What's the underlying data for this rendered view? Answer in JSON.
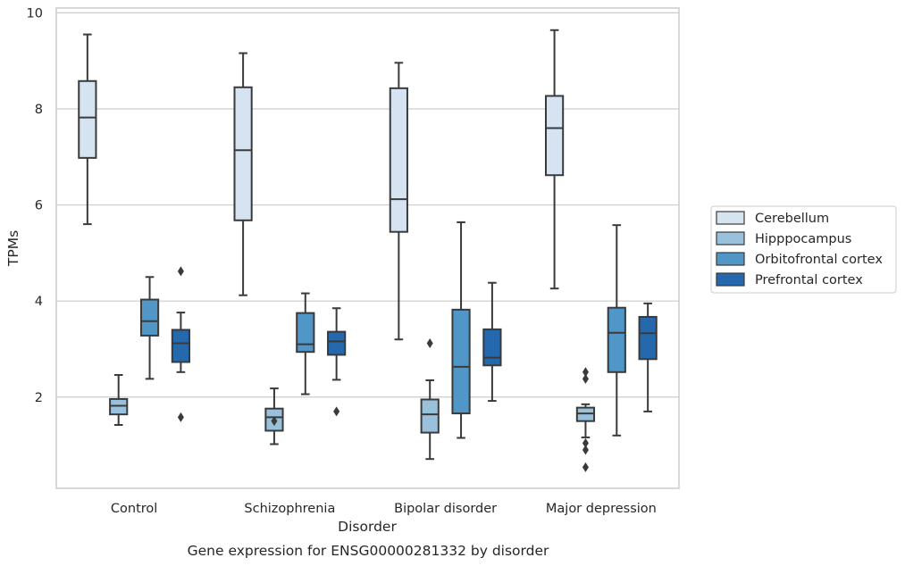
{
  "chart_data": {
    "type": "box",
    "caption": "Gene expression for ENSG00000281332 by disorder",
    "xlabel": "Disorder",
    "ylabel": "TPMs",
    "ylim": [
      0.1,
      10.1
    ],
    "yticks": [
      2,
      4,
      6,
      8,
      10
    ],
    "grid": "horizontal",
    "legend_position": "right",
    "categories": [
      "Control",
      "Schizophrenia",
      "Bipolar disorder",
      "Major depression"
    ],
    "series": [
      {
        "name": "Cerebellum",
        "color": "#d6e4f2",
        "boxes": [
          {
            "whisker_low": 5.6,
            "q1": 6.98,
            "median": 7.82,
            "q3": 8.58,
            "whisker_high": 9.55,
            "outliers": []
          },
          {
            "whisker_low": 4.12,
            "q1": 5.68,
            "median": 7.14,
            "q3": 8.45,
            "whisker_high": 9.16,
            "outliers": []
          },
          {
            "whisker_low": 3.2,
            "q1": 5.44,
            "median": 6.12,
            "q3": 8.43,
            "whisker_high": 8.96,
            "outliers": []
          },
          {
            "whisker_low": 4.26,
            "q1": 6.62,
            "median": 7.6,
            "q3": 8.27,
            "whisker_high": 9.64,
            "outliers": []
          }
        ]
      },
      {
        "name": "Hipppocampus",
        "color": "#99c1dc",
        "boxes": [
          {
            "whisker_low": 1.42,
            "q1": 1.64,
            "median": 1.82,
            "q3": 1.96,
            "whisker_high": 2.46,
            "outliers": []
          },
          {
            "whisker_low": 1.02,
            "q1": 1.3,
            "median": 1.58,
            "q3": 1.76,
            "whisker_high": 2.18,
            "outliers": [
              1.5
            ]
          },
          {
            "whisker_low": 0.71,
            "q1": 1.26,
            "median": 1.64,
            "q3": 1.95,
            "whisker_high": 2.35,
            "outliers": [
              3.12
            ]
          },
          {
            "whisker_low": 1.16,
            "q1": 1.5,
            "median": 1.66,
            "q3": 1.78,
            "whisker_high": 1.85,
            "outliers": [
              0.54,
              0.9,
              1.04,
              2.38,
              2.52
            ]
          }
        ]
      },
      {
        "name": "Orbitofrontal cortex",
        "color": "#5096c7",
        "boxes": [
          {
            "whisker_low": 2.38,
            "q1": 3.28,
            "median": 3.58,
            "q3": 4.03,
            "whisker_high": 4.5,
            "outliers": []
          },
          {
            "whisker_low": 2.06,
            "q1": 2.94,
            "median": 3.1,
            "q3": 3.75,
            "whisker_high": 4.16,
            "outliers": []
          },
          {
            "whisker_low": 1.15,
            "q1": 1.66,
            "median": 2.63,
            "q3": 3.82,
            "whisker_high": 5.64,
            "outliers": []
          },
          {
            "whisker_low": 1.2,
            "q1": 2.52,
            "median": 3.34,
            "q3": 3.86,
            "whisker_high": 5.58,
            "outliers": []
          }
        ]
      },
      {
        "name": "Prefrontal cortex",
        "color": "#2468ad",
        "boxes": [
          {
            "whisker_low": 2.52,
            "q1": 2.73,
            "median": 3.12,
            "q3": 3.4,
            "whisker_high": 3.76,
            "outliers": [
              1.58,
              4.62
            ]
          },
          {
            "whisker_low": 2.36,
            "q1": 2.88,
            "median": 3.16,
            "q3": 3.36,
            "whisker_high": 3.85,
            "outliers": [
              1.7
            ]
          },
          {
            "whisker_low": 1.92,
            "q1": 2.66,
            "median": 2.82,
            "q3": 3.41,
            "whisker_high": 4.38,
            "outliers": []
          },
          {
            "whisker_low": 1.7,
            "q1": 2.79,
            "median": 3.33,
            "q3": 3.67,
            "whisker_high": 3.95,
            "outliers": []
          }
        ]
      }
    ]
  }
}
